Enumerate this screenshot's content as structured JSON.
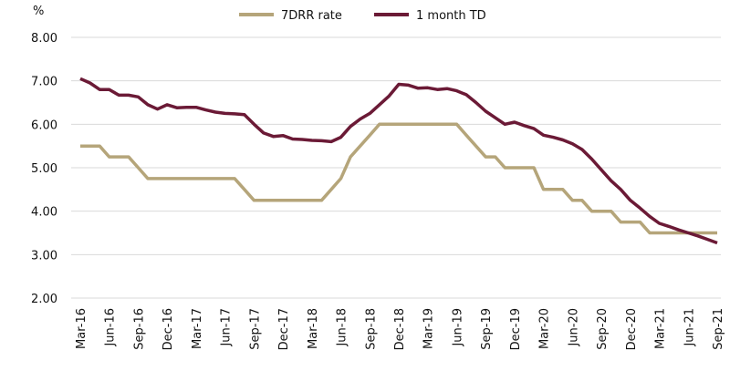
{
  "chart_data": {
    "type": "line",
    "y_label": "%",
    "categories": [
      "Mar-16",
      null,
      null,
      "Jun-16",
      null,
      null,
      "Sep-16",
      null,
      null,
      "Dec-16",
      null,
      null,
      "Mar-17",
      null,
      null,
      "Jun-17",
      null,
      null,
      "Sep-17",
      null,
      null,
      "Dec-17",
      null,
      null,
      "Mar-18",
      null,
      null,
      "Jun-18",
      null,
      null,
      "Sep-18",
      null,
      null,
      "Dec-18",
      null,
      null,
      "Mar-19",
      null,
      null,
      "Jun-19",
      null,
      null,
      "Sep-19",
      null,
      null,
      "Dec-19",
      null,
      null,
      "Mar-20",
      null,
      null,
      "Jun-20",
      null,
      null,
      "Sep-20",
      null,
      null,
      "Dec-20",
      null,
      null,
      "Mar-21",
      null,
      null,
      "Jun-21",
      null,
      null,
      "Sep-21"
    ],
    "series": [
      {
        "name": "7DRR rate",
        "color": "#b5a57a",
        "values": [
          5.5,
          5.5,
          5.5,
          5.25,
          5.25,
          5.25,
          5.0,
          4.75,
          4.75,
          4.75,
          4.75,
          4.75,
          4.75,
          4.75,
          4.75,
          4.75,
          4.75,
          4.5,
          4.25,
          4.25,
          4.25,
          4.25,
          4.25,
          4.25,
          4.25,
          4.25,
          4.5,
          4.75,
          5.25,
          5.5,
          5.75,
          6.0,
          6.0,
          6.0,
          6.0,
          6.0,
          6.0,
          6.0,
          6.0,
          6.0,
          5.75,
          5.5,
          5.25,
          5.25,
          5.0,
          5.0,
          5.0,
          5.0,
          4.5,
          4.5,
          4.5,
          4.25,
          4.25,
          4.0,
          4.0,
          4.0,
          3.75,
          3.75,
          3.75,
          3.5,
          3.5,
          3.5,
          3.5,
          3.5,
          3.5,
          3.5,
          3.5
        ]
      },
      {
        "name": "1 month TD",
        "color": "#6b1a36",
        "values": [
          7.05,
          6.95,
          6.8,
          6.8,
          6.67,
          6.67,
          6.63,
          6.45,
          6.35,
          6.45,
          6.38,
          6.39,
          6.39,
          6.33,
          6.28,
          6.25,
          6.24,
          6.22,
          6.0,
          5.8,
          5.72,
          5.74,
          5.66,
          5.65,
          5.63,
          5.62,
          5.6,
          5.7,
          5.95,
          6.12,
          6.25,
          6.45,
          6.65,
          6.92,
          6.9,
          6.83,
          6.84,
          6.8,
          6.82,
          6.77,
          6.68,
          6.5,
          6.3,
          6.15,
          6.0,
          6.05,
          5.97,
          5.9,
          5.75,
          5.7,
          5.64,
          5.55,
          5.42,
          5.2,
          4.95,
          4.7,
          4.5,
          4.25,
          4.07,
          3.88,
          3.72,
          3.65,
          3.57,
          3.5,
          3.43,
          3.35,
          3.27
        ]
      }
    ],
    "ylim": [
      2,
      8
    ],
    "yticks": [
      {
        "value": 2,
        "label": "2.00"
      },
      {
        "value": 3,
        "label": "3.00"
      },
      {
        "value": 4,
        "label": "4.00"
      },
      {
        "value": 5,
        "label": "5.00"
      },
      {
        "value": 6,
        "label": "6.00"
      },
      {
        "value": 7,
        "label": "7.00"
      },
      {
        "value": 8,
        "label": "8.00"
      }
    ],
    "grid": true,
    "legend": "top"
  }
}
